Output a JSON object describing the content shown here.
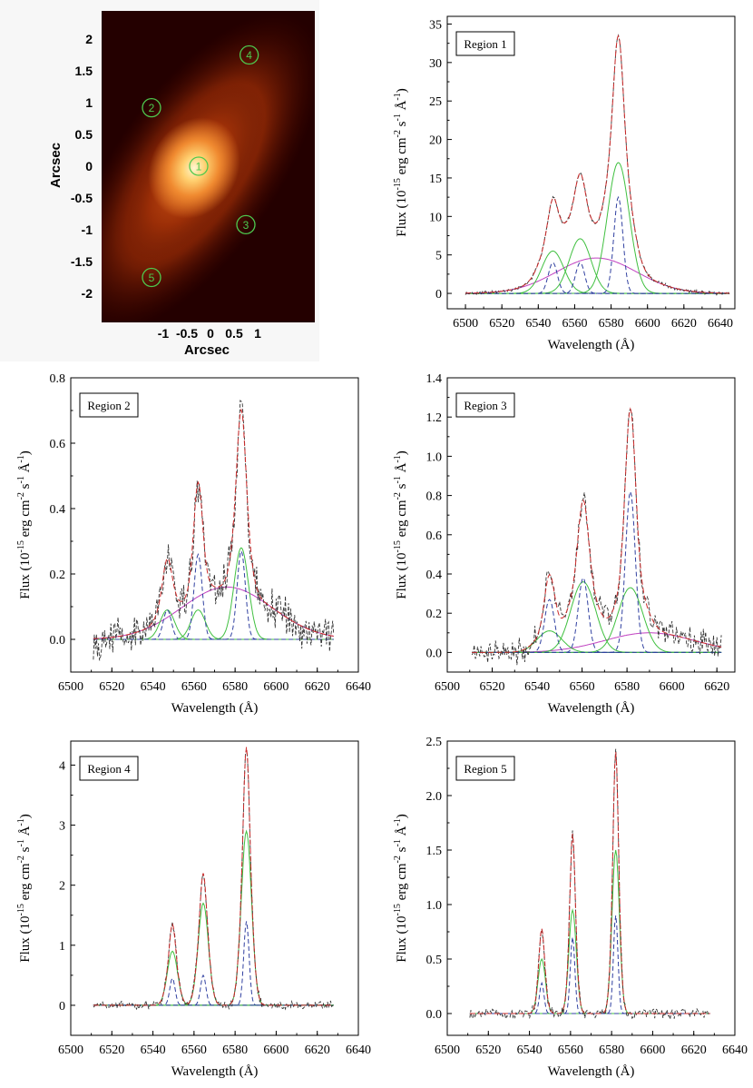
{
  "map": {
    "xlabel": "Arcsec",
    "ylabel": "Arcsec",
    "xticks": [
      "-1",
      "-0.5",
      "0",
      "0.5",
      "1"
    ],
    "yticks": [
      "2",
      "1.5",
      "1",
      "0.5",
      "0",
      "-0.5",
      "-1",
      "-1.5",
      "-2"
    ],
    "regions": [
      {
        "label": "1",
        "x": -0.25,
        "y": 0.0
      },
      {
        "label": "2",
        "x": -1.25,
        "y": 0.92
      },
      {
        "label": "3",
        "x": 0.75,
        "y": -0.92
      },
      {
        "label": "4",
        "x": 0.82,
        "y": 1.75
      },
      {
        "label": "5",
        "x": -1.25,
        "y": -1.75
      }
    ],
    "colors": {
      "circle": "#4ec94e",
      "bg_dark": "#250000",
      "core": "#fff6c8"
    }
  },
  "chart_data": [
    {
      "type": "line",
      "title": "Region 1",
      "xlabel": "Wavelength (Å)",
      "ylabel_parts": [
        "Flux (10",
        "-15",
        " erg cm",
        "-2",
        " s",
        "-1",
        " Å",
        "-1",
        ")"
      ],
      "xlim": [
        6490,
        6648
      ],
      "ylim": [
        -2,
        36
      ],
      "xticks": [
        6500,
        6520,
        6540,
        6560,
        6580,
        6600,
        6620,
        6640
      ],
      "yticks": [
        0,
        5,
        10,
        15,
        20,
        25,
        30,
        35
      ],
      "xrange": [
        6500,
        6645
      ],
      "noise": 0.15,
      "broad": {
        "amp": 4.6,
        "center": 6572,
        "sigma": 22
      },
      "narrow": {
        "amps": [
          4.0,
          4.0,
          12.5
        ],
        "sigma": 2.5,
        "shift": 0
      },
      "inter": {
        "amps": [
          5.5,
          7.1,
          17.0
        ],
        "sigma": 6.0,
        "shift": 0
      }
    },
    {
      "type": "line",
      "title": "Region 2",
      "xlabel": "Wavelength (Å)",
      "ylabel_parts": [
        "Flux (10",
        "-15",
        " erg cm",
        "-2",
        " s",
        "-1",
        " Å",
        "-1",
        ")"
      ],
      "xlim": [
        6500,
        6640
      ],
      "ylim": [
        -0.1,
        0.8
      ],
      "xticks": [
        6500,
        6520,
        6540,
        6560,
        6580,
        6600,
        6620,
        6640
      ],
      "yticks": [
        0.0,
        0.2,
        0.4,
        0.6,
        0.8
      ],
      "xrange": [
        6511,
        6628
      ],
      "noise": 0.035,
      "broad": {
        "amp": 0.16,
        "center": 6576,
        "sigma": 22
      },
      "narrow": {
        "amps": [
          0.09,
          0.26,
          0.27
        ],
        "sigma": 2.0,
        "shift": -1
      },
      "inter": {
        "amps": [
          0.09,
          0.09,
          0.28
        ],
        "sigma": 3.5,
        "shift": -1
      }
    },
    {
      "type": "line",
      "title": "Region 3",
      "xlabel": "Wavelength (Å)",
      "ylabel_parts": [
        "Flux (10",
        "-15",
        " erg cm",
        "-2",
        " s",
        "-1",
        " Å",
        "-1",
        ")"
      ],
      "xlim": [
        6500,
        6628
      ],
      "ylim": [
        -0.1,
        1.4
      ],
      "xticks": [
        6500,
        6520,
        6540,
        6560,
        6580,
        6600,
        6620
      ],
      "yticks": [
        0.0,
        0.2,
        0.4,
        0.6,
        0.8,
        1.0,
        1.2,
        1.4
      ],
      "xrange": [
        6511,
        6622
      ],
      "noise": 0.04,
      "broad": {
        "amp": 0.1,
        "center": 6590,
        "sigma": 20
      },
      "narrow": {
        "amps": [
          0.27,
          0.38,
          0.82
        ],
        "sigma": 2.2,
        "shift": -2.5
      },
      "inter": {
        "amps": [
          0.11,
          0.36,
          0.33
        ],
        "sigma": 5.5,
        "shift": -2.5
      }
    },
    {
      "type": "line",
      "title": "Region 4",
      "xlabel": "Wavelength (Å)",
      "ylabel_parts": [
        "Flux (10",
        "-15",
        " erg cm",
        "-2",
        " s",
        "-1",
        " Å",
        "-1",
        ")"
      ],
      "xlim": [
        6500,
        6640
      ],
      "ylim": [
        -0.5,
        4.4
      ],
      "xticks": [
        6500,
        6520,
        6540,
        6560,
        6580,
        6600,
        6620,
        6640
      ],
      "yticks": [
        0,
        1,
        2,
        3,
        4
      ],
      "xrange": [
        6511,
        6628
      ],
      "noise": 0.04,
      "broad": {
        "amp": 0,
        "center": 6570,
        "sigma": 20
      },
      "narrow": {
        "amps": [
          0.45,
          0.5,
          1.4
        ],
        "sigma": 1.3,
        "shift": 1.5
      },
      "inter": {
        "amps": [
          0.9,
          1.7,
          2.9
        ],
        "sigma": 2.5,
        "shift": 1.5
      }
    },
    {
      "type": "line",
      "title": "Region 5",
      "xlabel": "Wavelength (Å)",
      "ylabel_parts": [
        "Flux (10",
        "-15",
        " erg cm",
        "-2",
        " s",
        "-1",
        " Å",
        "-1",
        ")"
      ],
      "xlim": [
        6500,
        6640
      ],
      "ylim": [
        -0.2,
        2.5
      ],
      "xticks": [
        6500,
        6520,
        6540,
        6560,
        6580,
        6600,
        6620,
        6640
      ],
      "yticks": [
        0.0,
        0.5,
        1.0,
        1.5,
        2.0,
        2.5
      ],
      "xrange": [
        6511,
        6628
      ],
      "noise": 0.03,
      "broad": {
        "amp": 0,
        "center": 6570,
        "sigma": 20
      },
      "narrow": {
        "amps": [
          0.28,
          0.7,
          0.9
        ],
        "sigma": 1.1,
        "shift": -2
      },
      "inter": {
        "amps": [
          0.5,
          0.95,
          1.5
        ],
        "sigma": 1.8,
        "shift": -2
      }
    }
  ],
  "colors": {
    "data": "#333333",
    "fit": "#cc2a2a",
    "broad": "#c040c0",
    "inter": "#40c040",
    "narrow": "#3040a0",
    "base": "#3333cc",
    "axis": "#000000"
  }
}
